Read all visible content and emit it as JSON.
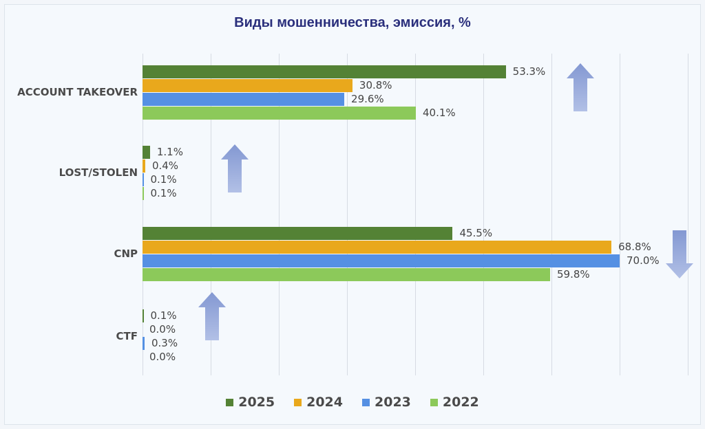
{
  "title": "Виды мошенничества, эмиссия, %",
  "colors": {
    "2025": "#548235",
    "2024": "#e9a81c",
    "2023": "#5590e3",
    "2022": "#8cc95a",
    "arrow": "#8fa3d6"
  },
  "legend": [
    {
      "label": "2025",
      "color": "#548235"
    },
    {
      "label": "2024",
      "color": "#e9a81c"
    },
    {
      "label": "2023",
      "color": "#5590e3"
    },
    {
      "label": "2022",
      "color": "#8cc95a"
    }
  ],
  "categories": [
    {
      "name": "ACCOUNT TAKEOVER",
      "values": [
        "53.3%",
        "30.8%",
        "29.6%",
        "40.1%"
      ],
      "trend": "up"
    },
    {
      "name": "LOST/STOLEN",
      "values": [
        "1.1%",
        "0.4%",
        "0.1%",
        "0.1%"
      ],
      "trend": "up"
    },
    {
      "name": "CNP",
      "values": [
        "45.5%",
        "68.8%",
        "70.0%",
        "59.8%"
      ],
      "trend": "down"
    },
    {
      "name": "CTF",
      "values": [
        "0.1%",
        "0.0%",
        "0.3%",
        "0.0%"
      ],
      "trend": "up"
    }
  ],
  "chart_data": {
    "type": "bar",
    "orientation": "horizontal",
    "title": "Виды мошенничества, эмиссия, %",
    "categories": [
      "ACCOUNT TAKEOVER",
      "LOST/STOLEN",
      "CNP",
      "CTF"
    ],
    "series": [
      {
        "name": "2025",
        "values": [
          53.3,
          1.1,
          45.5,
          0.1
        ]
      },
      {
        "name": "2024",
        "values": [
          30.8,
          0.4,
          68.8,
          0.0
        ]
      },
      {
        "name": "2023",
        "values": [
          29.6,
          0.1,
          70.0,
          0.3
        ]
      },
      {
        "name": "2022",
        "values": [
          40.1,
          0.1,
          59.8,
          0.0
        ]
      }
    ],
    "xlim": [
      0,
      80
    ],
    "grid": true,
    "legend_position": "bottom",
    "annotations": [
      "up arrow: ACCOUNT TAKEOVER",
      "up arrow: LOST/STOLEN",
      "down arrow: CNP",
      "up arrow: CTF"
    ]
  }
}
